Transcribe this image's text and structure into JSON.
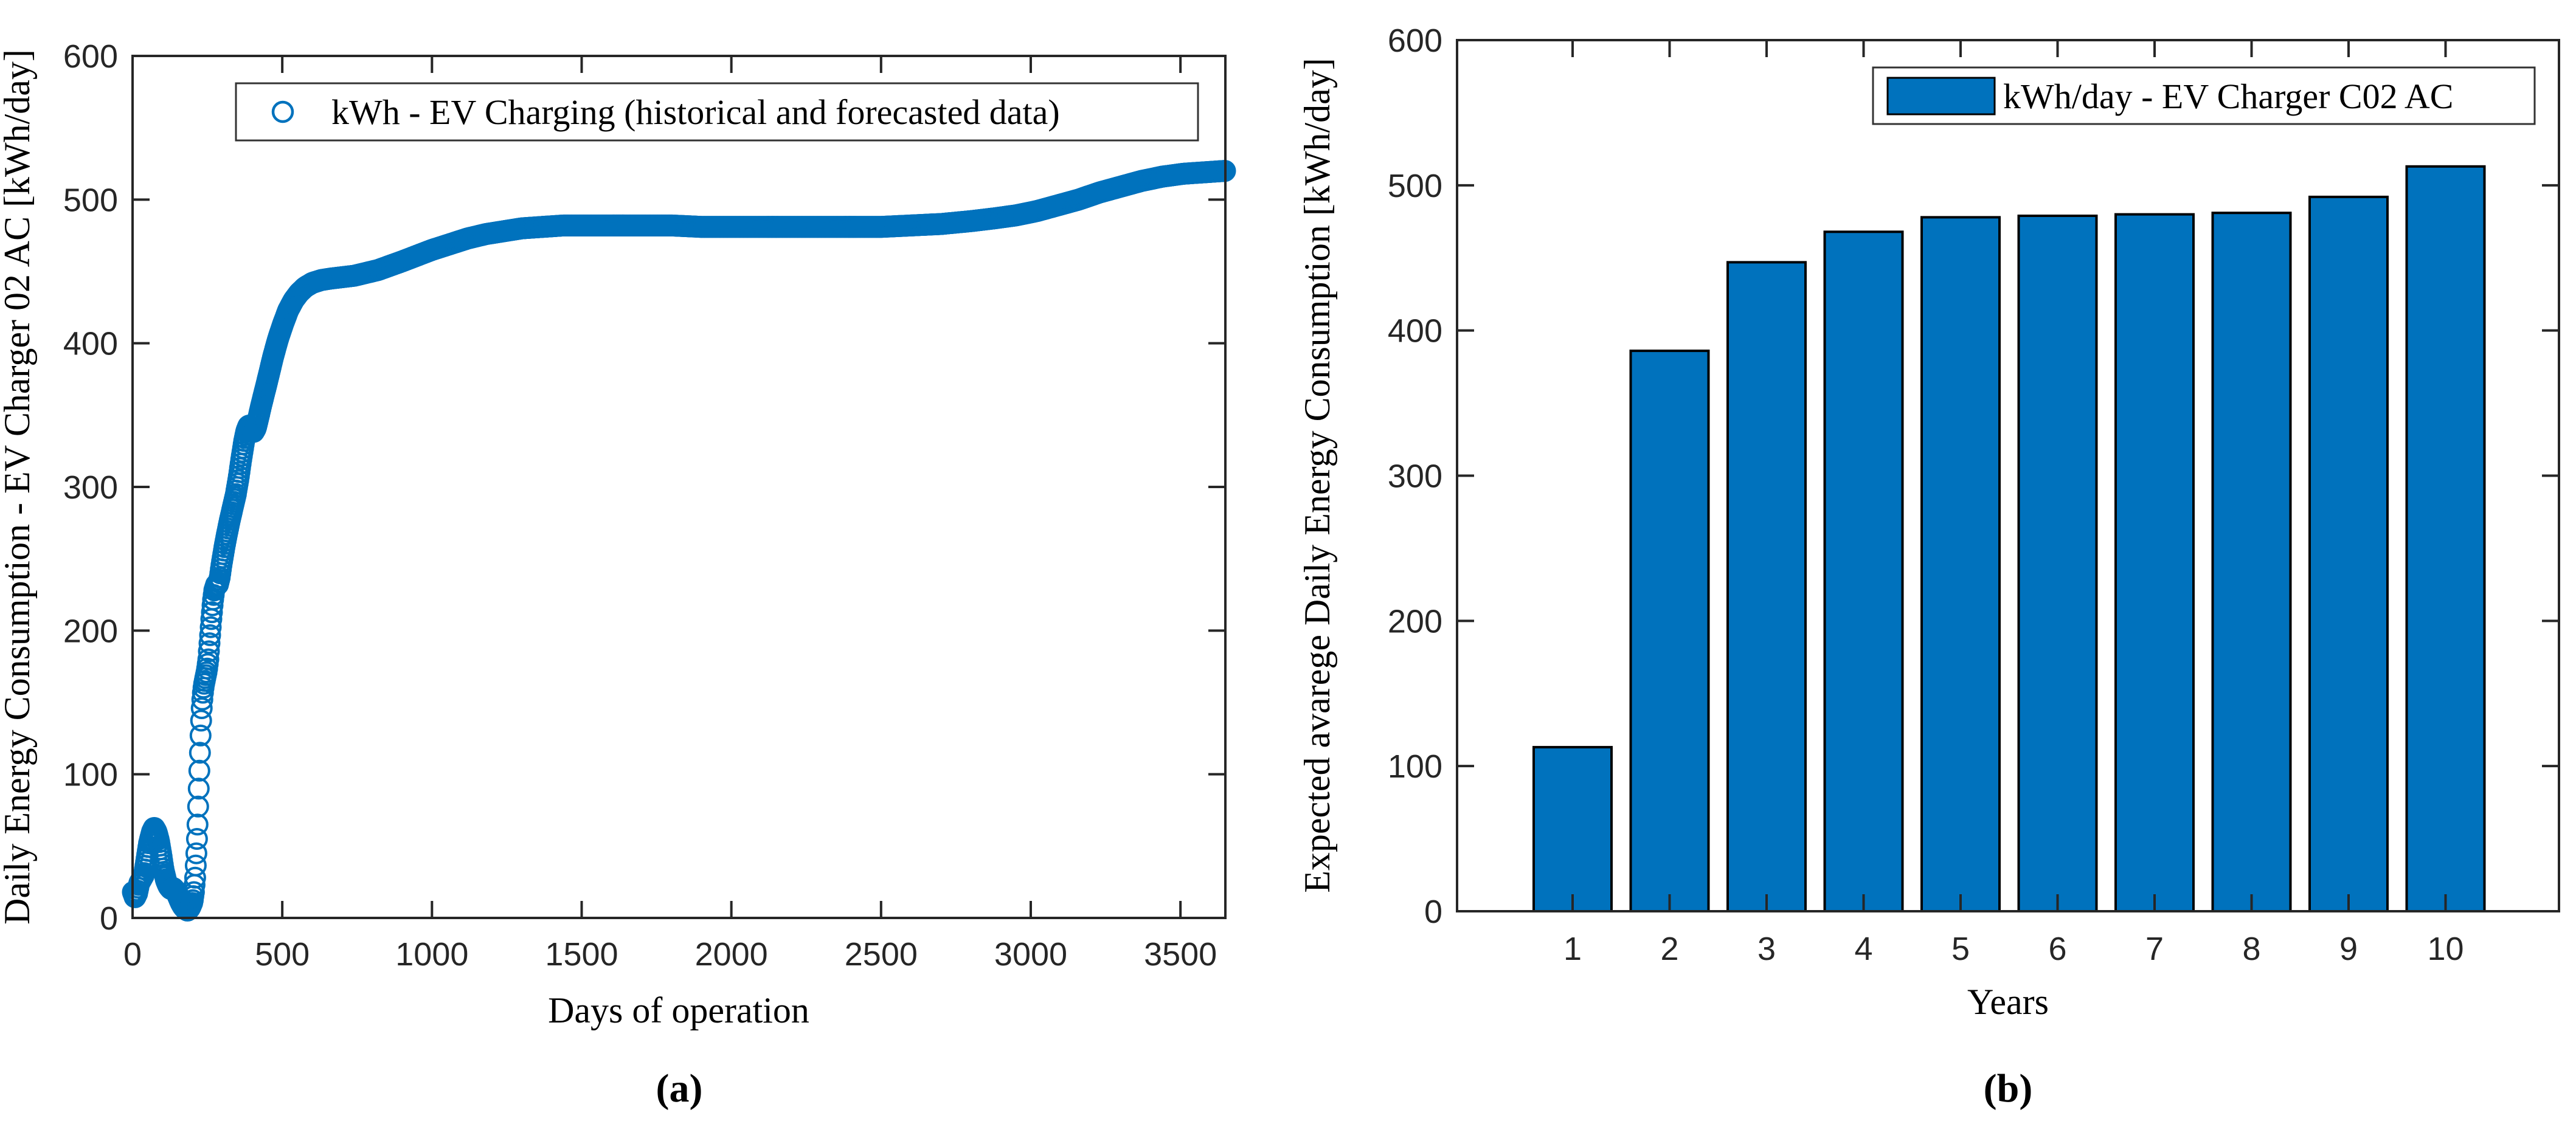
{
  "figure": {
    "caption_a": "(a)",
    "caption_b": "(b)",
    "accent_color": "#0072BD",
    "axis_color": "#262626"
  },
  "chart_data": [
    {
      "id": "a",
      "type": "scatter",
      "xlabel": "Days of operation",
      "ylabel": "Daily Energy Consumption - EV Charger 02 AC [kWh/day]",
      "legend": [
        "kWh - EV Charging (historical and forecasted data)"
      ],
      "legend_position": "north-inside",
      "marker": "open-circle",
      "color": "#0072BD",
      "grid": false,
      "xlim": [
        0,
        3650
      ],
      "ylim": [
        0,
        600
      ],
      "x_ticks": [
        0,
        500,
        1000,
        1500,
        2000,
        2500,
        3000,
        3500
      ],
      "y_ticks": [
        0,
        100,
        200,
        300,
        400,
        500,
        600
      ],
      "sample_step_days": 2,
      "series_keypoints": [
        [
          1,
          18
        ],
        [
          8,
          14
        ],
        [
          15,
          17
        ],
        [
          22,
          24
        ],
        [
          30,
          27
        ],
        [
          38,
          30
        ],
        [
          46,
          40
        ],
        [
          55,
          52
        ],
        [
          65,
          60
        ],
        [
          72,
          63
        ],
        [
          80,
          60
        ],
        [
          88,
          54
        ],
        [
          96,
          44
        ],
        [
          104,
          33
        ],
        [
          112,
          26
        ],
        [
          120,
          22
        ],
        [
          128,
          20
        ],
        [
          136,
          21
        ],
        [
          144,
          19
        ],
        [
          152,
          15
        ],
        [
          160,
          11
        ],
        [
          168,
          8
        ],
        [
          176,
          6
        ],
        [
          184,
          5
        ],
        [
          192,
          7
        ],
        [
          200,
          11
        ],
        [
          205,
          18
        ],
        [
          209,
          28
        ],
        [
          213,
          45
        ],
        [
          217,
          65
        ],
        [
          221,
          90
        ],
        [
          225,
          115
        ],
        [
          228,
          133
        ],
        [
          231,
          146
        ],
        [
          234,
          155
        ],
        [
          238,
          162
        ],
        [
          243,
          167
        ],
        [
          248,
          172
        ],
        [
          253,
          180
        ],
        [
          258,
          194
        ],
        [
          263,
          208
        ],
        [
          268,
          220
        ],
        [
          273,
          228
        ],
        [
          279,
          232
        ],
        [
          285,
          232
        ],
        [
          291,
          237
        ],
        [
          298,
          247
        ],
        [
          306,
          257
        ],
        [
          315,
          267
        ],
        [
          325,
          277
        ],
        [
          335,
          286
        ],
        [
          345,
          295
        ],
        [
          354,
          306
        ],
        [
          363,
          319
        ],
        [
          372,
          331
        ],
        [
          380,
          339
        ],
        [
          388,
          343
        ],
        [
          396,
          341
        ],
        [
          404,
          338
        ],
        [
          412,
          341
        ],
        [
          420,
          348
        ],
        [
          430,
          357
        ],
        [
          442,
          367
        ],
        [
          455,
          378
        ],
        [
          470,
          391
        ],
        [
          486,
          403
        ],
        [
          502,
          413
        ],
        [
          520,
          423
        ],
        [
          538,
          430
        ],
        [
          556,
          435
        ],
        [
          576,
          439
        ],
        [
          600,
          442
        ],
        [
          630,
          444
        ],
        [
          660,
          445
        ],
        [
          700,
          446
        ],
        [
          740,
          447
        ],
        [
          780,
          449
        ],
        [
          820,
          451
        ],
        [
          860,
          454
        ],
        [
          900,
          457
        ],
        [
          950,
          461
        ],
        [
          1000,
          465
        ],
        [
          1060,
          469
        ],
        [
          1120,
          473
        ],
        [
          1180,
          476
        ],
        [
          1240,
          478
        ],
        [
          1300,
          480
        ],
        [
          1370,
          481
        ],
        [
          1440,
          482
        ],
        [
          1520,
          482
        ],
        [
          1600,
          482
        ],
        [
          1700,
          482
        ],
        [
          1800,
          482
        ],
        [
          1900,
          481
        ],
        [
          2000,
          481
        ],
        [
          2100,
          481
        ],
        [
          2200,
          481
        ],
        [
          2300,
          481
        ],
        [
          2400,
          481
        ],
        [
          2500,
          481
        ],
        [
          2600,
          482
        ],
        [
          2700,
          483
        ],
        [
          2800,
          485
        ],
        [
          2880,
          487
        ],
        [
          2950,
          489
        ],
        [
          3020,
          492
        ],
        [
          3090,
          496
        ],
        [
          3160,
          500
        ],
        [
          3230,
          505
        ],
        [
          3300,
          509
        ],
        [
          3370,
          513
        ],
        [
          3440,
          516
        ],
        [
          3510,
          518
        ],
        [
          3580,
          519
        ],
        [
          3650,
          520
        ]
      ]
    },
    {
      "id": "b",
      "type": "bar",
      "xlabel": "Years",
      "ylabel": "Expected avarege Daily Energy Consumption [kWh/day]",
      "legend": [
        "kWh/day - EV Charger C02 AC"
      ],
      "legend_position": "north-east-inside",
      "color": "#0072BD",
      "bar_edge_color": "#000000",
      "grid": false,
      "categories": [
        "1",
        "2",
        "3",
        "4",
        "5",
        "6",
        "7",
        "8",
        "9",
        "10"
      ],
      "values": [
        113,
        386,
        447,
        468,
        478,
        479,
        480,
        481,
        492,
        513
      ],
      "ylim": [
        0,
        600
      ],
      "y_ticks": [
        0,
        100,
        200,
        300,
        400,
        500,
        600
      ]
    }
  ]
}
